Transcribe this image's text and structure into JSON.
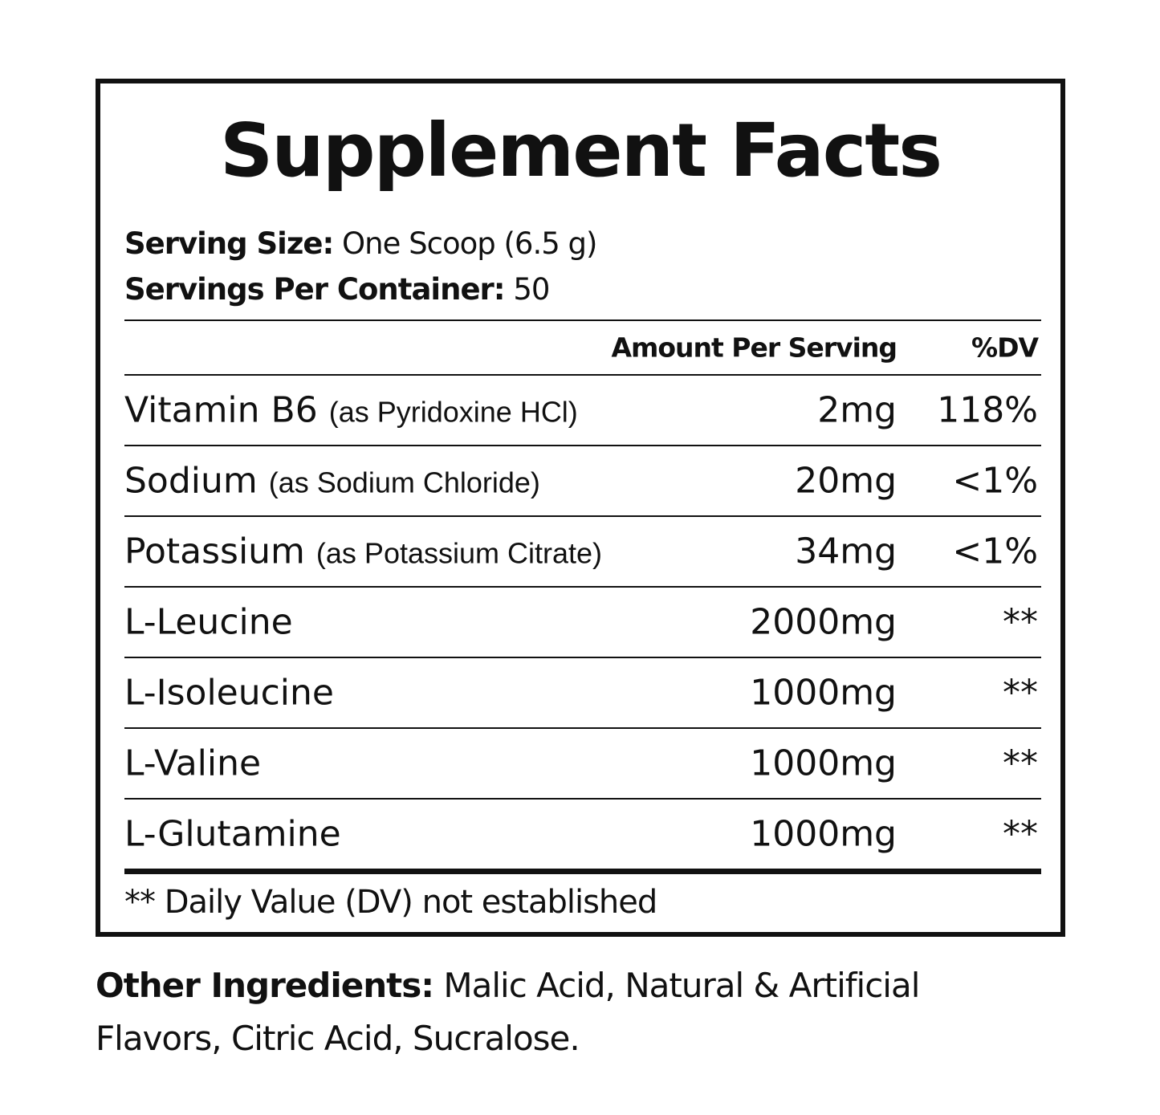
{
  "title": "Supplement Facts",
  "serving_size_label": "Serving Size:",
  "serving_size": "One Scoop (6.5 g)",
  "servings_label": "Servings Per Container:",
  "servings": "50",
  "header": {
    "amount": "Amount Per Serving",
    "dv": "%DV"
  },
  "rows": [
    {
      "name": "Vitamin B6",
      "source": "(as Pyridoxine HCl)",
      "amount": "2mg",
      "dv": "118%"
    },
    {
      "name": "Sodium",
      "source": "(as Sodium Chloride)",
      "amount": "20mg",
      "dv": "<1%"
    },
    {
      "name": "Potassium",
      "source": "(as Potassium Citrate)",
      "amount": "34mg",
      "dv": "<1%"
    },
    {
      "name": "L-Leucine",
      "source": "",
      "amount": "2000mg",
      "dv": "**"
    },
    {
      "name": "L-Isoleucine",
      "source": "",
      "amount": "1000mg",
      "dv": "**"
    },
    {
      "name": "L-Valine",
      "source": "",
      "amount": "1000mg",
      "dv": "**"
    },
    {
      "name": "L-Glutamine",
      "source": "",
      "amount": "1000mg",
      "dv": "**"
    }
  ],
  "footnote": "** Daily Value (DV) not established",
  "other_label": "Other Ingredients:",
  "other": "Malic Acid, Natural & Artificial Flavors, Citric Acid, Sucralose."
}
